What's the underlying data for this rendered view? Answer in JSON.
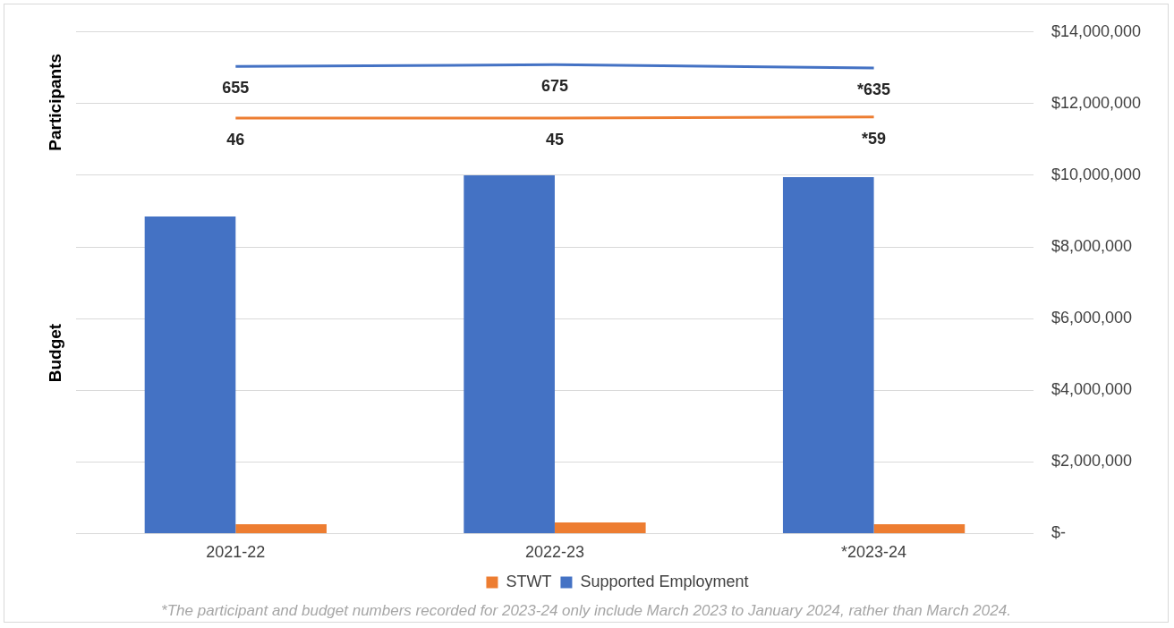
{
  "chart_data": {
    "type": "bar",
    "categories": [
      "2021-22",
      "2022-23",
      "*2023-24"
    ],
    "ylabel": "Budget",
    "y2label": "Participants",
    "ylim": [
      0,
      14000000
    ],
    "yticks": [
      {
        "value": 0,
        "label": "$-"
      },
      {
        "value": 2000000,
        "label": "$2,000,000"
      },
      {
        "value": 4000000,
        "label": "$4,000,000"
      },
      {
        "value": 6000000,
        "label": "$6,000,000"
      },
      {
        "value": 8000000,
        "label": "$8,000,000"
      },
      {
        "value": 10000000,
        "label": "$10,000,000"
      },
      {
        "value": 12000000,
        "label": "$12,000,000"
      },
      {
        "value": 14000000,
        "label": "$14,000,000"
      }
    ],
    "y2lim": [
      -4850,
      1060
    ],
    "grid": "y",
    "legend": "bottom",
    "series": [
      {
        "name": "Supported Employment",
        "color": "#4472c4",
        "values": [
          8850000,
          10000000,
          9950000
        ]
      },
      {
        "name": "STWT",
        "color": "#ed7d31",
        "values": [
          260000,
          310000,
          260000
        ]
      },
      {
        "type": "line",
        "axis": "y2",
        "color": "#4472c4",
        "values": [
          655,
          675,
          635
        ],
        "value_labels": [
          "655",
          "675",
          "*635"
        ]
      },
      {
        "type": "line",
        "axis": "y2",
        "color": "#ed7d31",
        "values": [
          46,
          45,
          59
        ],
        "value_labels": [
          "46",
          "45",
          "*59"
        ]
      }
    ],
    "annotations": [
      "*The participant and budget numbers recorded for 2023-24 only include March 2023 to January 2024, rather than March 2024."
    ]
  }
}
